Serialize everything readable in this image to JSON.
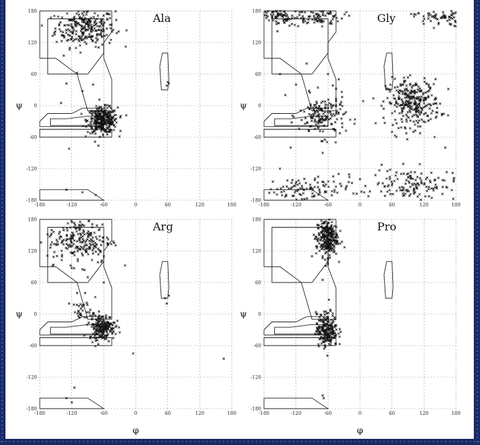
{
  "chart_data": [
    {
      "type": "scatter",
      "title": "Ala",
      "xlabel": "",
      "ylabel": "ψ",
      "xlim": [
        -180,
        180
      ],
      "ylim": [
        -180,
        180
      ],
      "xticks": [
        "-180",
        "-120",
        "-60",
        "0",
        "60",
        "120",
        "180"
      ],
      "yticks": [
        "180",
        "120",
        "60",
        "0",
        "-60",
        "-120",
        "-180"
      ],
      "grid": true,
      "clusters": [
        {
          "name": "",
          "center": [
            -95,
            148
          ],
          "spread": [
            28,
            18
          ],
          "count": 260
        },
        {
          "name": "",
          "center": [
            -62,
            -28
          ],
          "spread": [
            14,
            12
          ],
          "count": 320
        }
      ],
      "outliers": [
        [
          -135,
          95
        ],
        [
          -110,
          62
        ],
        [
          -130,
          42
        ],
        [
          -100,
          28
        ],
        [
          -140,
          5
        ],
        [
          -80,
          40
        ],
        [
          -125,
          -82
        ],
        [
          -130,
          -160
        ],
        [
          -100,
          -165
        ],
        [
          -75,
          -170
        ],
        [
          60,
          45
        ],
        [
          58,
          38
        ],
        [
          62,
          42
        ]
      ]
    },
    {
      "type": "scatter",
      "title": "Gly",
      "xlabel": "",
      "ylabel": "ψ",
      "xlim": [
        -180,
        180
      ],
      "ylim": [
        -180,
        180
      ],
      "xticks": [
        "-180",
        "-120",
        "-60",
        "0",
        "60",
        "120",
        "180"
      ],
      "yticks": [
        "180",
        "120",
        "60",
        "0",
        "-60",
        "-120",
        "-180"
      ],
      "grid": true,
      "clusters": [
        {
          "name": "",
          "center": [
            -150,
            170
          ],
          "spread": [
            25,
            10
          ],
          "count": 90
        },
        {
          "name": "",
          "center": [
            -80,
            170
          ],
          "spread": [
            25,
            10
          ],
          "count": 90
        },
        {
          "name": "",
          "center": [
            150,
            170
          ],
          "spread": [
            25,
            10
          ],
          "count": 90
        },
        {
          "name": "",
          "center": [
            100,
            5
          ],
          "spread": [
            25,
            22
          ],
          "count": 300
        },
        {
          "name": "",
          "center": [
            -70,
            -20
          ],
          "spread": [
            22,
            20
          ],
          "count": 160
        },
        {
          "name": "",
          "center": [
            100,
            -150
          ],
          "spread": [
            40,
            15
          ],
          "count": 140
        },
        {
          "name": "",
          "center": [
            -110,
            -160
          ],
          "spread": [
            45,
            12
          ],
          "count": 110
        }
      ],
      "outliers": [
        [
          -150,
          60
        ],
        [
          -120,
          40
        ],
        [
          -100,
          80
        ],
        [
          -60,
          60
        ],
        [
          -40,
          50
        ],
        [
          -140,
          20
        ],
        [
          60,
          -50
        ],
        [
          100,
          -50
        ],
        [
          140,
          -60
        ],
        [
          160,
          -80
        ],
        [
          -130,
          -80
        ],
        [
          -70,
          -90
        ],
        [
          -40,
          -130
        ],
        [
          -150,
          -120
        ],
        [
          0,
          -140
        ]
      ]
    },
    {
      "type": "scatter",
      "title": "Arg",
      "xlabel": "φ",
      "ylabel": "ψ",
      "xlim": [
        -180,
        180
      ],
      "ylim": [
        -180,
        180
      ],
      "xticks": [
        "-180",
        "-120",
        "-60",
        "0",
        "60",
        "120",
        "180"
      ],
      "yticks": [
        "180",
        "120",
        "60",
        "0",
        "-60",
        "-120",
        "-180"
      ],
      "grid": true,
      "clusters": [
        {
          "name": "",
          "center": [
            -105,
            140
          ],
          "spread": [
            30,
            22
          ],
          "count": 230
        },
        {
          "name": "",
          "center": [
            -63,
            -25
          ],
          "spread": [
            12,
            12
          ],
          "count": 200
        },
        {
          "name": "",
          "center": [
            -95,
            5
          ],
          "spread": [
            12,
            10
          ],
          "count": 30
        }
      ],
      "outliers": [
        [
          -100,
          85
        ],
        [
          -90,
          70
        ],
        [
          -110,
          40
        ],
        [
          -95,
          40
        ],
        [
          -125,
          20
        ],
        [
          -60,
          60
        ],
        [
          -75,
          -45
        ],
        [
          55,
          30
        ],
        [
          58,
          20
        ],
        [
          62,
          35
        ],
        [
          -5,
          -75
        ],
        [
          165,
          -85
        ],
        [
          -115,
          -140
        ],
        [
          -130,
          -160
        ],
        [
          -120,
          -168
        ]
      ]
    },
    {
      "type": "scatter",
      "title": "Pro",
      "xlabel": "φ",
      "ylabel": "ψ",
      "xlim": [
        -180,
        180
      ],
      "ylim": [
        -180,
        180
      ],
      "xticks": [
        "-180",
        "-120",
        "-60",
        "0",
        "60",
        "120",
        "180"
      ],
      "yticks": [
        "180",
        "120",
        "60",
        "0",
        "-60",
        "-120",
        "-180"
      ],
      "grid": true,
      "clusters": [
        {
          "name": "",
          "center": [
            -62,
            145
          ],
          "spread": [
            10,
            18
          ],
          "count": 260
        },
        {
          "name": "",
          "center": [
            -62,
            -30
          ],
          "spread": [
            10,
            16
          ],
          "count": 220
        }
      ],
      "outliers": [
        [
          -70,
          110
        ],
        [
          -60,
          95
        ],
        [
          -70,
          65
        ],
        [
          -90,
          110
        ],
        [
          -80,
          0
        ],
        [
          -70,
          -155
        ],
        [
          -68,
          -160
        ]
      ]
    }
  ]
}
